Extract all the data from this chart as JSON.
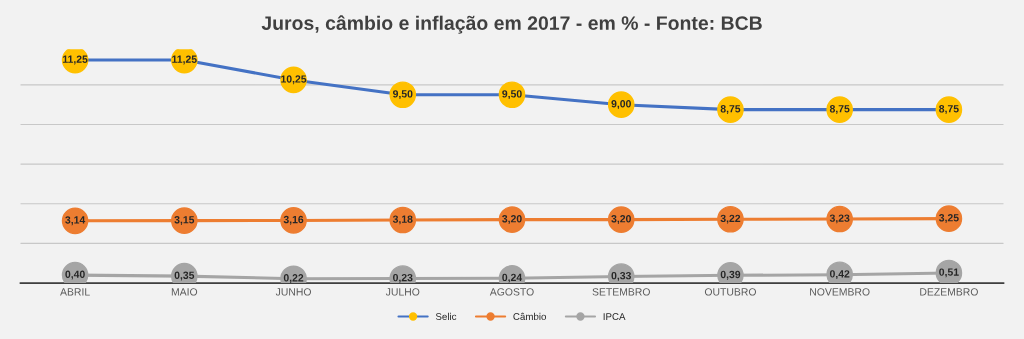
{
  "chart_data": {
    "type": "line",
    "title": "Juros, câmbio e inflação em 2017 - em % - Fonte: BCB",
    "categories": [
      "ABRIL",
      "MAIO",
      "JUNHO",
      "JULHO",
      "AGOSTO",
      "SETEMBRO",
      "OUTUBRO",
      "NOVEMBRO",
      "DEZEMBRO"
    ],
    "series": [
      {
        "name": "Selic",
        "color": "#4472c4",
        "colors": [
          "#ffc000",
          "#ffc000",
          "#ffc000",
          "#ffc000",
          "#ffc000",
          "#ffc000",
          "#ffc000",
          "#ffc000",
          "#ffc000"
        ],
        "values": [
          11.25,
          11.25,
          10.25,
          9.5,
          9.5,
          9.0,
          8.75,
          8.75,
          8.75
        ],
        "value_labels": [
          "11,25",
          "11,25",
          "10,25",
          "9,50",
          "9,50",
          "9,00",
          "8,75",
          "8,75",
          "8,75"
        ]
      },
      {
        "name": "Câmbio",
        "color": "#ed7d31",
        "values": [
          3.14,
          3.15,
          3.16,
          3.18,
          3.2,
          3.2,
          3.22,
          3.23,
          3.25
        ],
        "value_labels": [
          "3,14",
          "3,15",
          "3,16",
          "3,18",
          "3,20",
          "3,20",
          "3,22",
          "3,23",
          "3,25"
        ]
      },
      {
        "name": "IPCA",
        "color": "#a5a5a5",
        "values": [
          0.4,
          0.35,
          0.22,
          0.23,
          0.24,
          0.33,
          0.39,
          0.42,
          0.51
        ],
        "value_labels": [
          "0,40",
          "0,35",
          "0,22",
          "0,23",
          "0,24",
          "0,33",
          "0,39",
          "0,42",
          "0,51"
        ]
      }
    ],
    "tick_labels": "x",
    "grid": "y",
    "legend": "bottom",
    "marker": "circle",
    "line_style": "solid"
  }
}
